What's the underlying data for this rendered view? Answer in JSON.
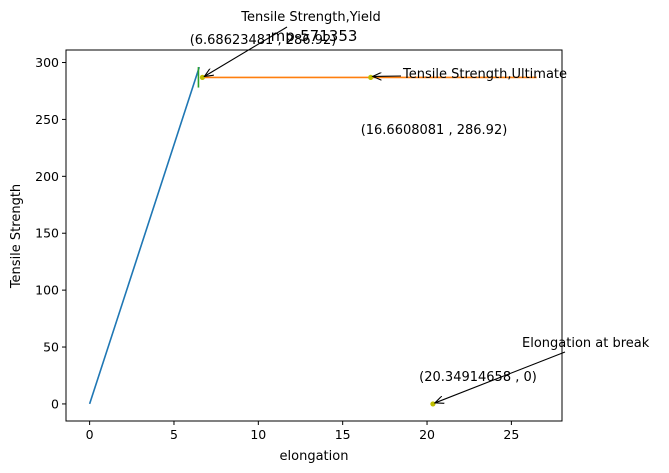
{
  "chart_data": {
    "type": "line",
    "title": "mp-571353",
    "xlabel": "elongation",
    "ylabel": "Tensile Strength",
    "xlim": [
      -1.4,
      28
    ],
    "ylim": [
      -15,
      311
    ],
    "xticks": [
      0,
      5,
      10,
      15,
      20,
      25
    ],
    "yticks": [
      0,
      50,
      100,
      150,
      200,
      250,
      300
    ],
    "grid": false,
    "series": [
      {
        "color": "#1f77b4",
        "x": [
          0,
          6.5
        ],
        "y": [
          0,
          296
        ]
      },
      {
        "color": "#ff7f0e",
        "x": [
          6.7,
          26.5
        ],
        "y": [
          286.92,
          286.92
        ]
      },
      {
        "color": "#2ca02c",
        "x": [
          6.45,
          6.45
        ],
        "y": [
          296,
          278
        ]
      }
    ],
    "points": [
      {
        "x": 6.68623481,
        "y": 286.92,
        "color": "#bfbf00"
      },
      {
        "x": 16.6608081,
        "y": 286.92,
        "color": "#bfbf00"
      },
      {
        "x": 20.34914658,
        "y": 0,
        "color": "#bfbf00"
      }
    ],
    "annotations": [
      {
        "name": "yield",
        "label": "Tensile Strength,Yield",
        "coord_text": "(6.68623481 , 286.92)",
        "x": 6.68623481,
        "y": 286.92
      },
      {
        "name": "ultimate",
        "label": "Tensile Strength,Ultimate",
        "coord_text": "(16.6608081 , 286.92)",
        "x": 16.6608081,
        "y": 286.92
      },
      {
        "name": "break",
        "label": "Elongation at break",
        "coord_text": "(20.34914658 , 0)",
        "x": 20.34914658,
        "y": 0
      }
    ]
  }
}
